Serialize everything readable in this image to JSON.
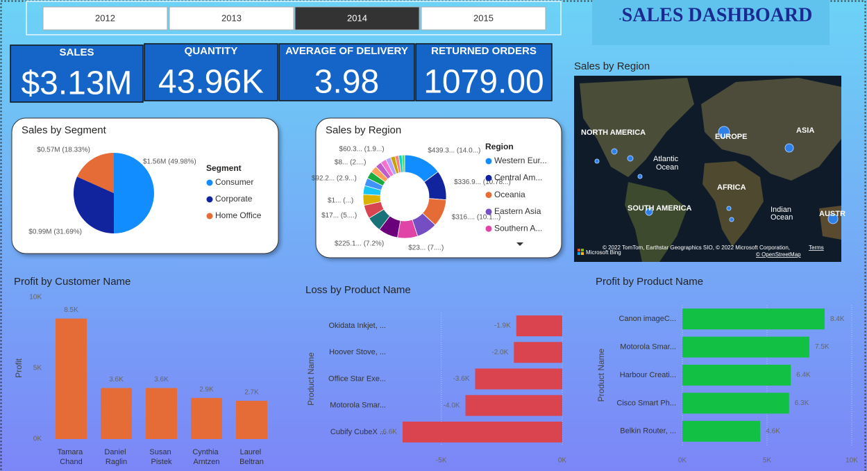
{
  "slicer": {
    "years": [
      "2012",
      "2013",
      "2014",
      "2015"
    ],
    "selected": "2014"
  },
  "title": "SALES DASHBOARD",
  "kpis": [
    {
      "label": "SALES",
      "value": "$3.13M"
    },
    {
      "label": "QUANTITY",
      "value": "43.96K"
    },
    {
      "label": "AVERAGE OF DELIVERY",
      "value": "3.98"
    },
    {
      "label": "RETURNED ORDERS",
      "value": "1079.00"
    }
  ],
  "map": {
    "title": "Sales by Region",
    "labels": [
      "NORTH AMERICA",
      "EUROPE",
      "ASIA",
      "Atlantic",
      "Ocean",
      "AFRICA",
      "SOUTH AMERICA",
      "Indian",
      "Ocean",
      "AUSTR"
    ],
    "attribution": "© 2022 TomTom, Earthstar Geographics SIO, © 2022 Microsoft Corporation,",
    "terms": "Terms",
    "osm": "© OpenStreetMap",
    "bing": "Microsoft Bing"
  },
  "chart_data": [
    {
      "type": "pie",
      "title": "Sales by Segment",
      "legend_title": "Segment",
      "legend": "right",
      "categories": [
        "Consumer",
        "Corporate",
        "Home Office"
      ],
      "values": [
        49.98,
        31.69,
        18.33
      ],
      "value_labels": [
        "$1.56M (49.98%)",
        "$0.99M (31.69%)",
        "$0.57M (18.33%)"
      ],
      "colors": [
        "#118dff",
        "#12239e",
        "#e66c37"
      ]
    },
    {
      "type": "donut",
      "title": "Sales by Region",
      "legend_title": "Region",
      "legend": "right",
      "categories": [
        "Western Eur...",
        "Central Am...",
        "Oceania",
        "Eastern Asia",
        "Southern A...",
        null,
        null,
        null,
        null,
        null,
        null,
        null,
        null,
        null,
        null,
        null,
        null,
        null,
        null,
        null
      ],
      "values": [
        14.0,
        10.78,
        10.1,
        7.6,
        7.4,
        7.2,
        5.6,
        5.0,
        4.0,
        3.2,
        2.9,
        2.7,
        2.5,
        2.3,
        2.1,
        1.9,
        1.6,
        1.4,
        1.2,
        1.0
      ],
      "value_labels": [
        "$439.3... (14.0...)",
        "$336.9... (10.78...)",
        "$316.... (10.1...)",
        null,
        "$23... (7....)",
        "$225.1... (7.2%)",
        null,
        "$17... (5....)",
        "$1... (...)",
        null,
        "$92.2... (2.9...)",
        null,
        "$8... (2....)",
        null,
        null,
        "$60.3... (1.9...)",
        null,
        null,
        null,
        null
      ],
      "colors": [
        "#118dff",
        "#12239e",
        "#e66c37",
        "#744ec2",
        "#e044a7",
        "#6b007b",
        "#197278",
        "#d64550",
        "#d9b300",
        "#15c6f4",
        "#4092ff",
        "#1aab40",
        "#ffa058",
        "#be5dc9",
        "#f472d0",
        "#b5a1ff",
        "#c4a200",
        "#ff8080",
        "#00dbbc",
        "#5bd667"
      ]
    },
    {
      "type": "bar",
      "title": "Profit by Customer Name",
      "ylabel": "Profit",
      "categories": [
        "Tamara Chand",
        "Daniel Raglin",
        "Susan Pistek",
        "Cynthia Arntzen",
        "Laurel Beltran"
      ],
      "values": [
        8500,
        3600,
        3600,
        2900,
        2700
      ],
      "value_labels": [
        "8.5K",
        "3.6K",
        "3.6K",
        "2.9K",
        "2.7K"
      ],
      "color": "#e66c37",
      "grid": false,
      "ylim": [
        0,
        10000
      ],
      "yticks": [
        {
          "value": 0,
          "label": "0K"
        },
        {
          "value": 5000,
          "label": "5K"
        },
        {
          "value": 10000,
          "label": "10K"
        }
      ]
    },
    {
      "type": "hbar",
      "title": "Loss by Product Name",
      "ylabel": "Product Name",
      "categories": [
        "Okidata Inkjet, ...",
        "Hoover Stove, ...",
        "Office Star Exe...",
        "Motorola Smar...",
        "Cubify CubeX ..."
      ],
      "values": [
        -1900,
        -2000,
        -3600,
        -4000,
        -6600
      ],
      "value_labels": [
        "-1.9K",
        "-2.0K",
        "-3.6K",
        "-4.0K",
        "-6.6K"
      ],
      "color": "#d9444f",
      "grid": true,
      "xlim": [
        -7000,
        0
      ],
      "xticks": [
        {
          "value": -5000,
          "label": "-5K"
        },
        {
          "value": 0,
          "label": "0K"
        }
      ]
    },
    {
      "type": "hbar",
      "title": "Profit by Product Name",
      "ylabel": "Product Name",
      "categories": [
        "Canon imageC...",
        "Motorola Smar...",
        "Harbour Creati...",
        "Cisco Smart Ph...",
        "Belkin Router, ..."
      ],
      "values": [
        8400,
        7500,
        6400,
        6300,
        4600
      ],
      "value_labels": [
        "8.4K",
        "7.5K",
        "6.4K",
        "6.3K",
        "4.6K"
      ],
      "color": "#12c044",
      "grid": true,
      "xlim": [
        0,
        10000
      ],
      "xticks": [
        {
          "value": 0,
          "label": "0K"
        },
        {
          "value": 5000,
          "label": "5K"
        },
        {
          "value": 10000,
          "label": "10K"
        }
      ]
    }
  ]
}
